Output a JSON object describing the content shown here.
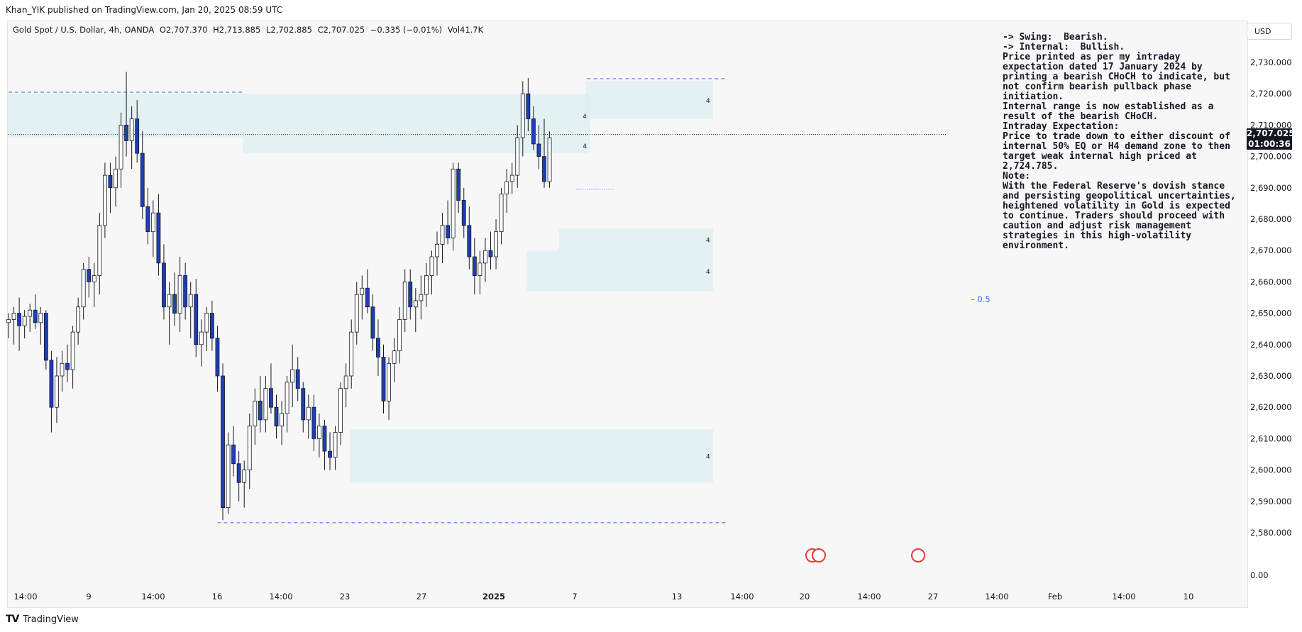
{
  "header": {
    "published": "Khan_YIK published on TradingView.com, Jan 20, 2025 08:59 UTC"
  },
  "symbol": {
    "name": "Gold Spot / U.S. Dollar, 4h, OANDA",
    "open": "O2,707.370",
    "high": "H2,713.885",
    "low": "L2,702.885",
    "close": "C2,707.025",
    "change": "−0.335 (−0.01%)",
    "volume": "Vol41.7K"
  },
  "currency_button": "USD",
  "last_price": {
    "price": "2,707.025",
    "countdown": "01:00:36"
  },
  "annotation": [
    "-> Swing:  Bearish.",
    "-> Internal:  Bullish.",
    "",
    "Price printed as per my intraday expectation dated 17 January 2024 by printing a bearish CHoCH to indicate, but not confirm bearish pullback phase initiation.",
    "",
    "Internal range is now established as a result of the bearish CHoCH.",
    "",
    "Intraday Expectation:",
    "",
    "Price to trade down to either discount of internal 50% EQ or H4 demand zone to then target weak internal high priced at 2,724.785.",
    "",
    "Note:",
    "With the Federal Reserve's dovish stance and persisting geopolitical uncertainties, heightened volatility in Gold is expected to continue. Traders should proceed with caution and adjust risk management strategies in this high-volatility environment."
  ],
  "eq_label": "0.5",
  "footer": {
    "brand": "TradingView"
  },
  "chart_data": {
    "type": "candlestick",
    "symbol": "Gold Spot / U.S. Dollar",
    "timeframe": "4h",
    "ylim": [
      2575,
      2735
    ],
    "y_ticks": [
      "2,730.000",
      "2,720.000",
      "2,710.000",
      "2,700.000",
      "2,690.000",
      "2,680.000",
      "2,670.000",
      "2,660.000",
      "2,650.000",
      "2,640.000",
      "2,630.000",
      "2,620.000",
      "2,610.000",
      "2,600.000",
      "2,590.000",
      "2,580.000"
    ],
    "volume_tick": "0.00",
    "x_ticks": [
      "14:00",
      "9",
      "14:00",
      "16",
      "14:00",
      "23",
      "27",
      "2025",
      "7",
      "13",
      "14:00",
      "20",
      "14:00",
      "27",
      "14:00",
      "Feb",
      "14:00",
      "10"
    ],
    "zone_labels": [
      "4",
      "4",
      "4",
      "4",
      "4",
      "4"
    ],
    "zones": [
      {
        "from_bar": 0,
        "to_bar": 108,
        "low": 2706,
        "high": 2720
      },
      {
        "from_bar": 44,
        "to_bar": 108,
        "low": 2701,
        "high": 2706
      },
      {
        "from_bar": 108,
        "to_bar": 131,
        "low": 2712,
        "high": 2724
      },
      {
        "from_bar": 103,
        "to_bar": 131,
        "low": 2670,
        "high": 2677
      },
      {
        "from_bar": 97,
        "to_bar": 131,
        "low": 2657,
        "high": 2670
      },
      {
        "from_bar": 64,
        "to_bar": 131,
        "low": 2596,
        "high": 2613
      }
    ],
    "levels": [
      {
        "price": 2720.5,
        "style": "dashed",
        "from_bar": 0,
        "to_bar": 44
      },
      {
        "price": 2724.8,
        "style": "dashed",
        "from_bar": 108,
        "to_bar": 134
      },
      {
        "price": 2583.2,
        "style": "dashed",
        "from_bar": 39,
        "to_bar": 134
      },
      {
        "price": 2689.6,
        "style": "dotted",
        "from_bar": 106,
        "to_bar": 113
      },
      {
        "price": 2707.0,
        "style": "dotted",
        "from_bar": 0,
        "to_bar": 175
      }
    ],
    "candles": [
      [
        2647,
        2650,
        2642,
        2648
      ],
      [
        2648,
        2652,
        2640,
        2650
      ],
      [
        2650,
        2655,
        2638,
        2646
      ],
      [
        2646,
        2651,
        2642,
        2649
      ],
      [
        2649,
        2653,
        2644,
        2651
      ],
      [
        2651,
        2656,
        2645,
        2647
      ],
      [
        2647,
        2652,
        2640,
        2650
      ],
      [
        2650,
        2651,
        2632,
        2635
      ],
      [
        2635,
        2638,
        2612,
        2620
      ],
      [
        2620,
        2636,
        2615,
        2630
      ],
      [
        2630,
        2638,
        2625,
        2634
      ],
      [
        2634,
        2640,
        2628,
        2632
      ],
      [
        2632,
        2646,
        2626,
        2644
      ],
      [
        2644,
        2655,
        2640,
        2652
      ],
      [
        2652,
        2666,
        2648,
        2664
      ],
      [
        2664,
        2668,
        2655,
        2660
      ],
      [
        2660,
        2666,
        2652,
        2662
      ],
      [
        2662,
        2682,
        2656,
        2678
      ],
      [
        2678,
        2698,
        2674,
        2694
      ],
      [
        2694,
        2698,
        2682,
        2690
      ],
      [
        2690,
        2700,
        2684,
        2696
      ],
      [
        2696,
        2714,
        2690,
        2710
      ],
      [
        2710,
        2727,
        2700,
        2705
      ],
      [
        2705,
        2716,
        2696,
        2712
      ],
      [
        2712,
        2718,
        2698,
        2701
      ],
      [
        2701,
        2708,
        2680,
        2684
      ],
      [
        2684,
        2690,
        2672,
        2676
      ],
      [
        2676,
        2686,
        2668,
        2682
      ],
      [
        2682,
        2688,
        2662,
        2666
      ],
      [
        2666,
        2672,
        2648,
        2652
      ],
      [
        2652,
        2660,
        2640,
        2656
      ],
      [
        2656,
        2663,
        2646,
        2650
      ],
      [
        2650,
        2668,
        2644,
        2662
      ],
      [
        2662,
        2666,
        2648,
        2652
      ],
      [
        2652,
        2660,
        2642,
        2656
      ],
      [
        2656,
        2661,
        2636,
        2640
      ],
      [
        2640,
        2648,
        2633,
        2644
      ],
      [
        2644,
        2652,
        2638,
        2650
      ],
      [
        2650,
        2654,
        2638,
        2642
      ],
      [
        2642,
        2646,
        2625,
        2630
      ],
      [
        2630,
        2634,
        2584,
        2588
      ],
      [
        2588,
        2612,
        2586,
        2608
      ],
      [
        2608,
        2614,
        2598,
        2602
      ],
      [
        2602,
        2606,
        2590,
        2596
      ],
      [
        2596,
        2603,
        2588,
        2600
      ],
      [
        2600,
        2618,
        2594,
        2614
      ],
      [
        2614,
        2626,
        2608,
        2622
      ],
      [
        2622,
        2630,
        2612,
        2616
      ],
      [
        2616,
        2630,
        2612,
        2626
      ],
      [
        2626,
        2634,
        2618,
        2620
      ],
      [
        2620,
        2624,
        2610,
        2614
      ],
      [
        2614,
        2622,
        2608,
        2618
      ],
      [
        2618,
        2630,
        2612,
        2628
      ],
      [
        2628,
        2640,
        2620,
        2632
      ],
      [
        2632,
        2636,
        2622,
        2626
      ],
      [
        2626,
        2628,
        2612,
        2616
      ],
      [
        2616,
        2624,
        2610,
        2620
      ],
      [
        2620,
        2624,
        2606,
        2610
      ],
      [
        2610,
        2618,
        2604,
        2614
      ],
      [
        2614,
        2616,
        2600,
        2606
      ],
      [
        2606,
        2612,
        2600,
        2604
      ],
      [
        2604,
        2614,
        2600,
        2612
      ],
      [
        2612,
        2628,
        2608,
        2626
      ],
      [
        2626,
        2634,
        2620,
        2630
      ],
      [
        2630,
        2648,
        2626,
        2644
      ],
      [
        2644,
        2660,
        2640,
        2656
      ],
      [
        2656,
        2662,
        2648,
        2658
      ],
      [
        2658,
        2664,
        2650,
        2652
      ],
      [
        2652,
        2656,
        2638,
        2642
      ],
      [
        2642,
        2648,
        2630,
        2636
      ],
      [
        2636,
        2640,
        2618,
        2622
      ],
      [
        2622,
        2636,
        2616,
        2634
      ],
      [
        2634,
        2642,
        2628,
        2638
      ],
      [
        2638,
        2652,
        2634,
        2648
      ],
      [
        2648,
        2664,
        2644,
        2660
      ],
      [
        2660,
        2664,
        2648,
        2652
      ],
      [
        2652,
        2658,
        2644,
        2654
      ],
      [
        2654,
        2662,
        2648,
        2656
      ],
      [
        2656,
        2666,
        2652,
        2662
      ],
      [
        2662,
        2670,
        2656,
        2668
      ],
      [
        2668,
        2676,
        2662,
        2672
      ],
      [
        2672,
        2682,
        2666,
        2678
      ],
      [
        2678,
        2686,
        2672,
        2674
      ],
      [
        2674,
        2698,
        2670,
        2696
      ],
      [
        2696,
        2698,
        2682,
        2686
      ],
      [
        2686,
        2690,
        2674,
        2678
      ],
      [
        2678,
        2684,
        2664,
        2668
      ],
      [
        2668,
        2674,
        2656,
        2662
      ],
      [
        2662,
        2670,
        2656,
        2666
      ],
      [
        2666,
        2674,
        2660,
        2670
      ],
      [
        2670,
        2676,
        2664,
        2668
      ],
      [
        2668,
        2680,
        2664,
        2676
      ],
      [
        2676,
        2690,
        2672,
        2688
      ],
      [
        2688,
        2696,
        2682,
        2692
      ],
      [
        2692,
        2698,
        2688,
        2694
      ],
      [
        2694,
        2710,
        2690,
        2706
      ],
      [
        2706,
        2724,
        2700,
        2720
      ],
      [
        2720,
        2725,
        2708,
        2712
      ],
      [
        2712,
        2716,
        2702,
        2704
      ],
      [
        2704,
        2710,
        2696,
        2700
      ],
      [
        2700,
        2712,
        2690,
        2692
      ],
      [
        2692,
        2708,
        2690,
        2706
      ]
    ]
  }
}
